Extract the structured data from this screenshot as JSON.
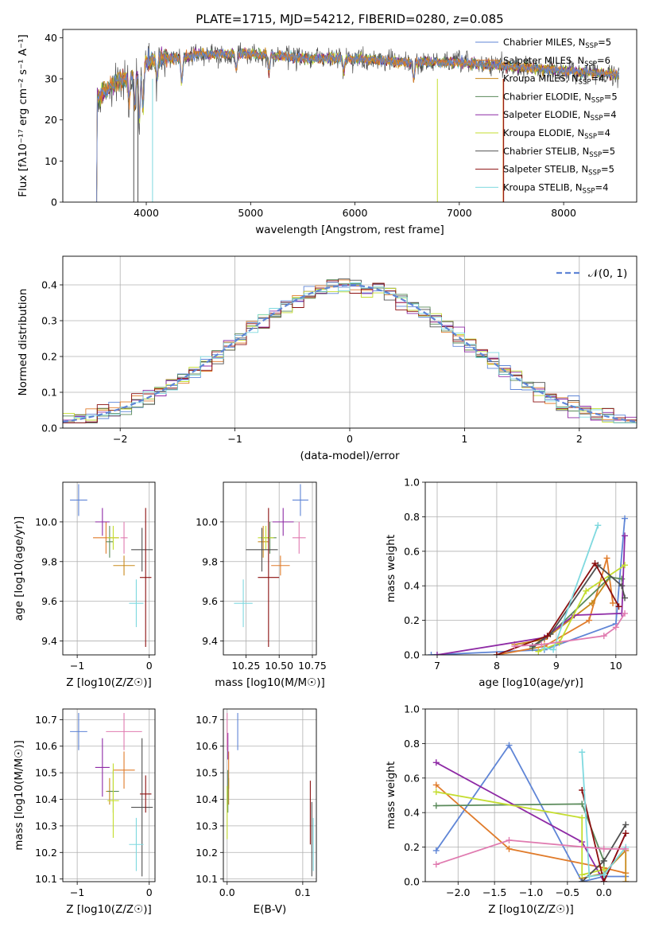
{
  "colors": [
    "#5f85d6",
    "#e07b2a",
    "#c98a1c",
    "#5a8a5a",
    "#8e2aa5",
    "#c4dd2f",
    "#505050",
    "#8b0f0f",
    "#7fd9df",
    "#e07bb0"
  ],
  "chart_data": [
    {
      "id": "spectrum",
      "type": "line",
      "title": "PLATE=1715, MJD=54212, FIBERID=0280, z=0.085",
      "xlabel": "wavelength [Angstrom, rest frame]",
      "ylabel": "Flux [fλ10⁻¹⁷ erg cm⁻² s⁻¹ A⁻¹]",
      "xlim": [
        3200,
        8700
      ],
      "ylim": [
        0,
        42
      ],
      "xticks": [
        4000,
        5000,
        6000,
        7000,
        8000
      ],
      "yticks": [
        0,
        10,
        20,
        30,
        40
      ],
      "legend": "top-right",
      "series": [
        {
          "name": "Chabrier MILES, N_SSP=5"
        },
        {
          "name": "Salpeter MILES, N_SSP=6"
        },
        {
          "name": "Kroupa MILES, N_SSP=4"
        },
        {
          "name": "Chabrier ELODIE, N_SSP=5"
        },
        {
          "name": "Salpeter ELODIE, N_SSP=4"
        },
        {
          "name": "Kroupa ELODIE, N_SSP=4"
        },
        {
          "name": "Chabrier STELIB, N_SSP=5"
        },
        {
          "name": "Salpeter STELIB, N_SSP=5"
        },
        {
          "name": "Kroupa STELIB, N_SSP=4"
        }
      ],
      "continuum": {
        "x": [
          3500,
          3600,
          3700,
          3800,
          3900,
          4000,
          4100,
          4300,
          4500,
          5000,
          5500,
          6000,
          6500,
          7000,
          7500,
          8000,
          8500
        ],
        "y": [
          24,
          27,
          29,
          30,
          31,
          34,
          35,
          35,
          36,
          36,
          35,
          35,
          34,
          34,
          33,
          32,
          31
        ]
      }
    },
    {
      "id": "residual-hist",
      "type": "area",
      "xlabel": "(data-model)/error",
      "ylabel": "Normed distribution",
      "xlim": [
        -2.5,
        2.5
      ],
      "ylim": [
        0,
        0.48
      ],
      "xticks": [
        -2,
        -1,
        0,
        1,
        2
      ],
      "yticks": [
        0.0,
        0.1,
        0.2,
        0.3,
        0.4
      ],
      "legend": "top-right",
      "legend_label": "𝒩(0, 1)",
      "bin_width": 0.1
    },
    {
      "id": "age-vs-z",
      "type": "scatter",
      "xlabel": "Z [log10(Z/Z☉)]",
      "ylabel": "age  [log10(age/yr)]",
      "xlim": [
        -1.2,
        0.08
      ],
      "ylim": [
        9.33,
        10.2
      ],
      "xticks": [
        -1,
        0
      ],
      "yticks": [
        9.4,
        9.6,
        9.8,
        10.0
      ],
      "points": [
        {
          "x": -0.98,
          "y": 10.11,
          "xerr": 0.12,
          "yerr": 0.08
        },
        {
          "x": -0.6,
          "y": 9.92,
          "xerr": 0.18,
          "yerr": 0.08
        },
        {
          "x": -0.35,
          "y": 9.78,
          "xerr": 0.15,
          "yerr": 0.05
        },
        {
          "x": -0.55,
          "y": 9.9,
          "xerr": 0.05,
          "yerr": 0.08
        },
        {
          "x": -0.65,
          "y": 10.0,
          "xerr": 0.1,
          "yerr": 0.07
        },
        {
          "x": -0.5,
          "y": 9.92,
          "xerr": 0.08,
          "yerr": 0.06
        },
        {
          "x": -0.1,
          "y": 9.86,
          "xerr": 0.15,
          "yerr": 0.11
        },
        {
          "x": -0.05,
          "y": 9.72,
          "xerr": 0.08,
          "yerr": 0.35
        },
        {
          "x": -0.18,
          "y": 9.59,
          "xerr": 0.1,
          "yerr": 0.12
        },
        {
          "x": -0.35,
          "y": 9.92,
          "xerr": 0.05,
          "yerr": 0.08
        }
      ]
    },
    {
      "id": "age-vs-mass",
      "type": "scatter",
      "xlabel": "mass [log10(M/M☉)]",
      "xlim": [
        10.08,
        10.78
      ],
      "ylim": [
        9.33,
        10.2
      ],
      "xticks": [
        10.25,
        10.5,
        10.75
      ],
      "yticks": [
        9.4,
        9.6,
        9.8,
        10.0
      ],
      "points": [
        {
          "x": 10.66,
          "y": 10.11,
          "xerr": 0.06,
          "yerr": 0.08
        },
        {
          "x": 10.51,
          "y": 9.78,
          "xerr": 0.07,
          "yerr": 0.05
        },
        {
          "x": 10.38,
          "y": 9.9,
          "xerr": 0.04,
          "yerr": 0.08
        },
        {
          "x": 10.43,
          "y": 9.92,
          "xerr": 0.05,
          "yerr": 0.08
        },
        {
          "x": 10.53,
          "y": 10.0,
          "xerr": 0.08,
          "yerr": 0.07
        },
        {
          "x": 10.4,
          "y": 9.92,
          "xerr": 0.06,
          "yerr": 0.06
        },
        {
          "x": 10.37,
          "y": 9.86,
          "xerr": 0.12,
          "yerr": 0.11
        },
        {
          "x": 10.42,
          "y": 9.72,
          "xerr": 0.08,
          "yerr": 0.35
        },
        {
          "x": 10.23,
          "y": 9.59,
          "xerr": 0.07,
          "yerr": 0.12
        },
        {
          "x": 10.65,
          "y": 9.92,
          "xerr": 0.05,
          "yerr": 0.08
        }
      ]
    },
    {
      "id": "weight-vs-age",
      "type": "line",
      "xlabel": "age  [log10(age/yr)]",
      "ylabel": "mass weight",
      "xlim": [
        6.8,
        10.35
      ],
      "ylim": [
        0,
        1.0
      ],
      "xticks": [
        7,
        8,
        9,
        10
      ],
      "yticks": [
        0.0,
        0.2,
        0.4,
        0.6,
        0.8,
        1.0
      ],
      "series": [
        {
          "x": [
            6.9,
            8.8,
            10.0,
            10.15
          ],
          "y": [
            0.0,
            0.03,
            0.18,
            0.79
          ]
        },
        {
          "x": [
            8.0,
            8.8,
            9.55,
            9.85,
            9.95
          ],
          "y": [
            0.0,
            0.05,
            0.2,
            0.56,
            0.3
          ]
        },
        {
          "x": [
            8.3,
            8.8,
            9.6,
            9.9
          ],
          "y": [
            0.06,
            0.09,
            0.3,
            0.45
          ]
        },
        {
          "x": [
            8.6,
            8.9,
            9.9,
            10.1
          ],
          "y": [
            0.04,
            0.12,
            0.45,
            0.44
          ]
        },
        {
          "x": [
            7.0,
            8.8,
            9.3,
            10.1,
            10.15
          ],
          "y": [
            0.0,
            0.1,
            0.23,
            0.24,
            0.69
          ]
        },
        {
          "x": [
            8.7,
            9.05,
            9.5,
            10.15
          ],
          "y": [
            0.02,
            0.07,
            0.37,
            0.52
          ]
        },
        {
          "x": [
            8.6,
            8.9,
            9.7,
            10.1,
            10.15
          ],
          "y": [
            0.05,
            0.12,
            0.52,
            0.4,
            0.33
          ]
        },
        {
          "x": [
            8.0,
            8.85,
            9.65,
            10.05
          ],
          "y": [
            0.0,
            0.11,
            0.53,
            0.28
          ]
        },
        {
          "x": [
            8.8,
            8.95,
            9.7
          ],
          "y": [
            0.04,
            0.03,
            0.75
          ]
        },
        {
          "x": [
            8.3,
            8.75,
            9.8,
            10.0,
            10.15
          ],
          "y": [
            0.05,
            0.06,
            0.11,
            0.16,
            0.24
          ]
        }
      ]
    },
    {
      "id": "mass-vs-z",
      "type": "scatter",
      "xlabel": "Z [log10(Z/Z☉)]",
      "ylabel": "mass [log10(M/M☉)]",
      "xlim": [
        -1.2,
        0.08
      ],
      "ylim": [
        10.09,
        10.74
      ],
      "xticks": [
        -1,
        0
      ],
      "yticks": [
        10.1,
        10.2,
        10.3,
        10.4,
        10.5,
        10.6,
        10.7
      ],
      "points": [
        {
          "x": -0.98,
          "y": 10.655,
          "xerr": 0.12,
          "yerr": 0.07
        },
        {
          "x": -0.35,
          "y": 10.51,
          "xerr": 0.15,
          "yerr": 0.07
        },
        {
          "x": -0.55,
          "y": 10.43,
          "xerr": 0.05,
          "yerr": 0.05
        },
        {
          "x": -0.5,
          "y": 10.43,
          "xerr": 0.08,
          "yerr": 0.08
        },
        {
          "x": -0.65,
          "y": 10.52,
          "xerr": 0.1,
          "yerr": 0.11
        },
        {
          "x": -0.5,
          "y": 10.395,
          "xerr": 0.08,
          "yerr": 0.14
        },
        {
          "x": -0.1,
          "y": 10.37,
          "xerr": 0.15,
          "yerr": 0.26
        },
        {
          "x": -0.05,
          "y": 10.42,
          "xerr": 0.08,
          "yerr": 0.07
        },
        {
          "x": -0.18,
          "y": 10.23,
          "xerr": 0.1,
          "yerr": 0.1
        },
        {
          "x": -0.35,
          "y": 10.655,
          "xerr": 0.25,
          "yerr": 0.07
        }
      ]
    },
    {
      "id": "mass-vs-ebv",
      "type": "scatter",
      "xlabel": "E(B-V)",
      "xlim": [
        -0.005,
        0.118
      ],
      "ylim": [
        10.09,
        10.74
      ],
      "xticks": [
        0.0,
        0.1
      ],
      "yticks": [
        10.1,
        10.2,
        10.3,
        10.4,
        10.5,
        10.6,
        10.7
      ],
      "points": [
        {
          "x": 0.014,
          "y": 10.655,
          "xerr": 0.0,
          "yerr": 0.07
        },
        {
          "x": 0.002,
          "y": 10.51,
          "xerr": 0.0,
          "yerr": 0.07
        },
        {
          "x": 0.002,
          "y": 10.43,
          "xerr": 0.0,
          "yerr": 0.05
        },
        {
          "x": 0.001,
          "y": 10.43,
          "xerr": 0.0,
          "yerr": 0.08
        },
        {
          "x": 0.001,
          "y": 10.6,
          "xerr": 0.0,
          "yerr": 0.05
        },
        {
          "x": 0.0,
          "y": 10.35,
          "xerr": 0.0,
          "yerr": 0.1
        },
        {
          "x": 0.112,
          "y": 10.25,
          "xerr": 0.0,
          "yerr": 0.14
        },
        {
          "x": 0.11,
          "y": 10.35,
          "xerr": 0.0,
          "yerr": 0.12
        },
        {
          "x": 0.114,
          "y": 10.23,
          "xerr": 0.0,
          "yerr": 0.1
        },
        {
          "x": 0.0,
          "y": 10.655,
          "xerr": 0.0,
          "yerr": 0.07
        }
      ]
    },
    {
      "id": "weight-vs-z",
      "type": "line",
      "xlabel": "Z [log10(Z/Z☉)]",
      "ylabel": "mass weight",
      "xlim": [
        -2.45,
        0.45
      ],
      "ylim": [
        0,
        1.0
      ],
      "xticks": [
        -2.0,
        -1.5,
        -1.0,
        -0.5,
        0.0
      ],
      "yticks": [
        0.0,
        0.2,
        0.4,
        0.6,
        0.8,
        1.0
      ],
      "series": [
        {
          "x": [
            -2.3,
            -1.3,
            -0.3,
            0.0,
            0.3
          ],
          "y": [
            0.18,
            0.79,
            0.0,
            0.03,
            0.03
          ]
        },
        {
          "x": [
            -2.3,
            -1.3,
            0.0,
            0.3
          ],
          "y": [
            0.56,
            0.19,
            0.08,
            0.05
          ]
        },
        {
          "x": [
            -0.3,
            0.0,
            0.3,
            0.3
          ],
          "y": [
            0.02,
            0.05,
            0.18,
            0.0
          ]
        },
        {
          "x": [
            -2.3,
            -0.3,
            0.0,
            0.0
          ],
          "y": [
            0.44,
            0.45,
            0.12,
            0.0
          ]
        },
        {
          "x": [
            -2.3,
            -0.3,
            0.0,
            0.3
          ],
          "y": [
            0.69,
            0.23,
            0.0,
            0.28
          ]
        },
        {
          "x": [
            -2.3,
            -0.3,
            -0.3,
            0.0
          ],
          "y": [
            0.52,
            0.37,
            0.04,
            0.07
          ]
        },
        {
          "x": [
            -0.3,
            0.0,
            0.3
          ],
          "y": [
            0.0,
            0.12,
            0.33
          ]
        },
        {
          "x": [
            -0.3,
            0.0,
            0.3
          ],
          "y": [
            0.53,
            0.0,
            0.28
          ]
        },
        {
          "x": [
            -0.3,
            -0.2,
            0.0,
            0.3
          ],
          "y": [
            0.75,
            0.03,
            0.04,
            0.2
          ]
        },
        {
          "x": [
            -2.3,
            -1.3,
            0.0,
            0.3
          ],
          "y": [
            0.1,
            0.24,
            0.19,
            0.19
          ]
        }
      ]
    }
  ]
}
